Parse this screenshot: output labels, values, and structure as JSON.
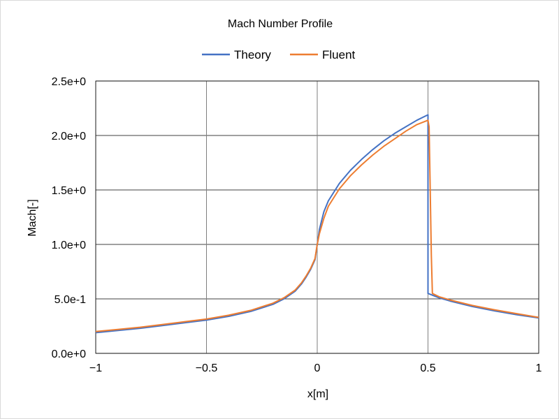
{
  "chart_data": {
    "type": "line",
    "title": "Mach Number Profile",
    "xlabel": "x[m]",
    "ylabel": "Mach[-]",
    "xlim": [
      -1,
      1
    ],
    "ylim": [
      0,
      2.5
    ],
    "grid": true,
    "legend_position": "top",
    "x_ticks": [
      -1,
      -0.5,
      0,
      0.5,
      1
    ],
    "x_tick_labels": [
      "-1",
      "-0.5",
      "0",
      "0.5",
      "1"
    ],
    "y_ticks": [
      0,
      0.5,
      1.0,
      1.5,
      2.0,
      2.5
    ],
    "y_tick_labels": [
      "0.0e+0",
      "5.0e-1",
      "1.0e+0",
      "1.5e+0",
      "2.0e+0",
      "2.5e+0"
    ],
    "series": [
      {
        "name": "Theory",
        "color": "#4472c4",
        "x": [
          -1.0,
          -0.9,
          -0.8,
          -0.7,
          -0.6,
          -0.5,
          -0.4,
          -0.3,
          -0.2,
          -0.15,
          -0.1,
          -0.07,
          -0.05,
          -0.03,
          -0.01,
          0.0,
          0.01,
          0.03,
          0.05,
          0.1,
          0.15,
          0.2,
          0.25,
          0.3,
          0.35,
          0.4,
          0.45,
          0.5,
          0.5,
          0.55,
          0.6,
          0.7,
          0.8,
          0.9,
          1.0
        ],
        "y": [
          0.19,
          0.21,
          0.23,
          0.255,
          0.28,
          0.305,
          0.34,
          0.385,
          0.45,
          0.5,
          0.57,
          0.64,
          0.7,
          0.77,
          0.86,
          1.0,
          1.14,
          1.3,
          1.4,
          1.56,
          1.68,
          1.78,
          1.87,
          1.95,
          2.02,
          2.08,
          2.14,
          2.19,
          0.55,
          0.51,
          0.48,
          0.43,
          0.39,
          0.355,
          0.325
        ]
      },
      {
        "name": "Fluent",
        "color": "#ed7d31",
        "x": [
          -1.0,
          -0.9,
          -0.8,
          -0.7,
          -0.6,
          -0.5,
          -0.4,
          -0.3,
          -0.2,
          -0.15,
          -0.1,
          -0.07,
          -0.05,
          -0.03,
          -0.01,
          0.0,
          0.01,
          0.03,
          0.05,
          0.1,
          0.15,
          0.2,
          0.25,
          0.3,
          0.35,
          0.4,
          0.45,
          0.5,
          0.505,
          0.51,
          0.515,
          0.52,
          0.53,
          0.55,
          0.6,
          0.7,
          0.8,
          0.9,
          1.0
        ],
        "y": [
          0.2,
          0.22,
          0.24,
          0.265,
          0.29,
          0.315,
          0.35,
          0.395,
          0.46,
          0.51,
          0.58,
          0.65,
          0.71,
          0.78,
          0.87,
          1.0,
          1.1,
          1.24,
          1.35,
          1.51,
          1.63,
          1.73,
          1.82,
          1.9,
          1.97,
          2.04,
          2.1,
          2.14,
          2.08,
          1.5,
          0.9,
          0.55,
          0.54,
          0.52,
          0.49,
          0.44,
          0.4,
          0.365,
          0.33
        ]
      }
    ]
  }
}
